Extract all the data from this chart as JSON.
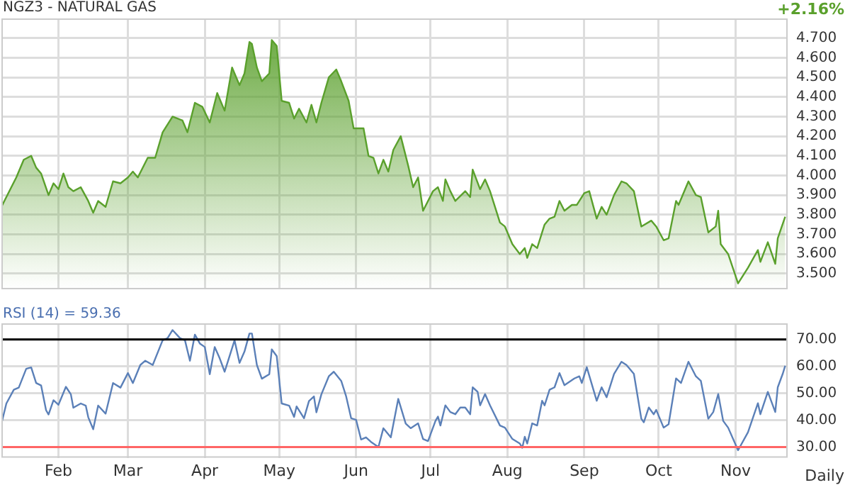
{
  "chart_data": [
    {
      "type": "area",
      "title": "NGZ3 - NATURAL GAS",
      "annotations": [
        "+2.16%"
      ],
      "grid": true,
      "tick_labels": "y",
      "xlim": [
        "--01-09",
        "--11-22"
      ],
      "xticks": [
        {
          "value": "--02-01",
          "label": null
        },
        {
          "value": "--03-01",
          "label": null
        },
        {
          "value": "--04-01",
          "label": null
        },
        {
          "value": "--05-01",
          "label": null
        },
        {
          "value": "--06-01",
          "label": null
        },
        {
          "value": "--07-01",
          "label": null
        },
        {
          "value": "--08-01",
          "label": null
        },
        {
          "value": "--09-01",
          "label": null
        },
        {
          "value": "--10-01",
          "label": null
        },
        {
          "value": "--11-01",
          "label": null
        }
      ],
      "ylim": [
        3.42,
        4.8
      ],
      "yticks": [
        {
          "value": 3.5,
          "label": "3.500"
        },
        {
          "value": 3.6,
          "label": "3.600"
        },
        {
          "value": 3.7,
          "label": "3.700"
        },
        {
          "value": 3.8,
          "label": "3.800"
        },
        {
          "value": 3.9,
          "label": "3.900"
        },
        {
          "value": 4.0,
          "label": "4.000"
        },
        {
          "value": 4.1,
          "label": "4.100"
        },
        {
          "value": 4.2,
          "label": "4.200"
        },
        {
          "value": 4.3,
          "label": "4.300"
        },
        {
          "value": 4.4,
          "label": "4.400"
        },
        {
          "value": 4.5,
          "label": "4.500"
        },
        {
          "value": 4.6,
          "label": "4.600"
        },
        {
          "value": 4.7,
          "label": "4.700"
        }
      ],
      "x": [
        "--01-09",
        "--01-13",
        "--01-15",
        "--01-18",
        "--01-21",
        "--01-23",
        "--01-25",
        "--01-28",
        "--01-30",
        "--02-01",
        "--02-03",
        "--02-05",
        "--02-07",
        "--02-10",
        "--02-13",
        "--02-15",
        "--02-17",
        "--02-20",
        "--02-23",
        "--02-26",
        "--03-01",
        "--03-03",
        "--03-05",
        "--03-09",
        "--03-12",
        "--03-15",
        "--03-19",
        "--03-23",
        "--03-25",
        "--03-28",
        "--03-31",
        "--04-03",
        "--04-06",
        "--04-09",
        "--04-12",
        "--04-15",
        "--04-17",
        "--04-19",
        "--04-20",
        "--04-22",
        "--04-24",
        "--04-27",
        "--04-28",
        "--04-30",
        "--05-02",
        "--05-05",
        "--05-07",
        "--05-09",
        "--05-12",
        "--05-14",
        "--05-16",
        "--05-18",
        "--05-21",
        "--05-24",
        "--05-26",
        "--05-29",
        "--05-31",
        "--06-04",
        "--06-06",
        "--06-08",
        "--06-10",
        "--06-12",
        "--06-14",
        "--06-16",
        "--06-19",
        "--06-22",
        "--06-24",
        "--06-26",
        "--06-28",
        "--07-02",
        "--07-04",
        "--07-06",
        "--07-07",
        "--07-09",
        "--07-11",
        "--07-15",
        "--07-17",
        "--07-18",
        "--07-21",
        "--07-23",
        "--07-25",
        "--07-29",
        "--07-31",
        "--08-03",
        "--08-06",
        "--08-08",
        "--08-09",
        "--08-11",
        "--08-13",
        "--08-16",
        "--08-18",
        "--08-20",
        "--08-22",
        "--08-24",
        "--08-27",
        "--08-29",
        "--09-01",
        "--09-03",
        "--09-06",
        "--09-08",
        "--09-10",
        "--09-13",
        "--09-16",
        "--09-18",
        "--09-21",
        "--09-24",
        "--09-28",
        "--09-30",
        "--10-03",
        "--10-05",
        "--10-08",
        "--10-09",
        "--10-13",
        "--10-16",
        "--10-18",
        "--10-21",
        "--10-24",
        "--10-25",
        "--10-26",
        "--10-29",
        "--11-02",
        "--11-06",
        "--11-10",
        "--11-11",
        "--11-14",
        "--11-17",
        "--11-18",
        "--11-21"
      ],
      "series": [
        {
          "color": "#5aa02c",
          "values": [
            3.84,
            3.94,
            3.99,
            4.08,
            4.1,
            4.04,
            4.01,
            3.9,
            3.96,
            3.93,
            4.01,
            3.94,
            3.92,
            3.94,
            3.87,
            3.81,
            3.87,
            3.84,
            3.97,
            3.96,
            3.99,
            4.02,
            3.99,
            4.09,
            4.09,
            4.22,
            4.3,
            4.28,
            4.22,
            4.37,
            4.35,
            4.27,
            4.42,
            4.33,
            4.55,
            4.46,
            4.52,
            4.68,
            4.67,
            4.55,
            4.48,
            4.52,
            4.69,
            4.66,
            4.38,
            4.37,
            4.29,
            4.34,
            4.27,
            4.36,
            4.27,
            4.37,
            4.5,
            4.54,
            4.48,
            4.38,
            4.24,
            4.24,
            4.1,
            4.09,
            4.01,
            4.08,
            4.02,
            4.13,
            4.2,
            4.05,
            3.94,
            3.99,
            3.82,
            3.92,
            3.94,
            3.87,
            3.98,
            3.92,
            3.87,
            3.92,
            3.89,
            4.03,
            3.93,
            3.98,
            3.92,
            3.76,
            3.74,
            3.65,
            3.6,
            3.63,
            3.58,
            3.65,
            3.63,
            3.75,
            3.78,
            3.79,
            3.87,
            3.82,
            3.85,
            3.85,
            3.91,
            3.92,
            3.78,
            3.84,
            3.8,
            3.9,
            3.97,
            3.96,
            3.92,
            3.74,
            3.77,
            3.74,
            3.67,
            3.68,
            3.87,
            3.85,
            3.97,
            3.9,
            3.89,
            3.71,
            3.74,
            3.82,
            3.65,
            3.6,
            3.45,
            3.53,
            3.62,
            3.56,
            3.66,
            3.55,
            3.68,
            3.79
          ]
        }
      ]
    },
    {
      "type": "line",
      "title": "RSI (14) = 59.36",
      "annotations": [
        "Daily"
      ],
      "grid": true,
      "xlim": [
        "--01-09",
        "--11-22"
      ],
      "xticks": [
        {
          "value": "--02-01",
          "label": "Feb"
        },
        {
          "value": "--03-01",
          "label": "Mar"
        },
        {
          "value": "--04-01",
          "label": "Apr"
        },
        {
          "value": "--05-01",
          "label": "May"
        },
        {
          "value": "--06-01",
          "label": "Jun"
        },
        {
          "value": "--07-01",
          "label": "Jul"
        },
        {
          "value": "--08-01",
          "label": "Aug"
        },
        {
          "value": "--09-01",
          "label": "Sep"
        },
        {
          "value": "--10-01",
          "label": "Oct"
        },
        {
          "value": "--11-01",
          "label": "Nov"
        }
      ],
      "ylim": [
        26,
        76
      ],
      "yticks": [
        {
          "value": 30,
          "label": "30.00"
        },
        {
          "value": 40,
          "label": "40.00"
        },
        {
          "value": 50,
          "label": "50.00"
        },
        {
          "value": 60,
          "label": "60.00"
        },
        {
          "value": 70,
          "label": "70.00"
        }
      ],
      "ref_lines": [
        {
          "axis": "y",
          "value": 70,
          "color": "#000000"
        },
        {
          "axis": "y",
          "value": 30,
          "color": "#ff6666"
        }
      ],
      "x": [
        "--01-09",
        "--01-11",
        "--01-14",
        "--01-16",
        "--01-19",
        "--01-21",
        "--01-23",
        "--01-25",
        "--01-27",
        "--01-28",
        "--01-30",
        "--02-01",
        "--02-04",
        "--02-06",
        "--02-07",
        "--02-10",
        "--02-12",
        "--02-13",
        "--02-15",
        "--02-17",
        "--02-20",
        "--02-23",
        "--02-26",
        "--03-01",
        "--03-03",
        "--03-06",
        "--03-08",
        "--03-11",
        "--03-15",
        "--03-17",
        "--03-19",
        "--03-22",
        "--03-24",
        "--03-26",
        "--03-28",
        "--03-30",
        "--04-01",
        "--04-03",
        "--04-05",
        "--04-07",
        "--04-09",
        "--04-13",
        "--04-15",
        "--04-17",
        "--04-19",
        "--04-20",
        "--04-22",
        "--04-24",
        "--04-27",
        "--04-28",
        "--04-30",
        "--05-02",
        "--05-05",
        "--05-07",
        "--05-08",
        "--05-11",
        "--05-13",
        "--05-15",
        "--05-16",
        "--05-18",
        "--05-21",
        "--05-23",
        "--05-26",
        "--05-28",
        "--05-30",
        "--06-01",
        "--06-03",
        "--06-05",
        "--06-07",
        "--06-10",
        "--06-12",
        "--06-15",
        "--06-18",
        "--06-21",
        "--06-23",
        "--06-26",
        "--06-28",
        "--06-30",
        "--07-03",
        "--07-04",
        "--07-05",
        "--07-07",
        "--07-09",
        "--07-11",
        "--07-13",
        "--07-15",
        "--07-17",
        "--07-18",
        "--07-20",
        "--07-21",
        "--07-23",
        "--07-25",
        "--07-29",
        "--07-31",
        "--08-03",
        "--08-06",
        "--08-07",
        "--08-08",
        "--08-09",
        "--08-11",
        "--08-13",
        "--08-15",
        "--08-16",
        "--08-18",
        "--08-20",
        "--08-22",
        "--08-24",
        "--08-28",
        "--08-30",
        "--08-31",
        "--09-02",
        "--09-06",
        "--09-08",
        "--09-10",
        "--09-13",
        "--09-16",
        "--09-18",
        "--09-21",
        "--09-24",
        "--09-25",
        "--09-27",
        "--09-29",
        "--09-30",
        "--10-03",
        "--10-05",
        "--10-08",
        "--10-10",
        "--10-13",
        "--10-16",
        "--10-18",
        "--10-21",
        "--10-23",
        "--10-25",
        "--10-27",
        "--10-29",
        "--11-02",
        "--11-06",
        "--11-10",
        "--11-11",
        "--11-14",
        "--11-17",
        "--11-18",
        "--11-20",
        "--11-21"
      ],
      "series": [
        {
          "color": "#5b80b8",
          "values": [
            38.7,
            46.2,
            51.3,
            52.1,
            59.1,
            59.6,
            53.8,
            52.9,
            43.7,
            42.1,
            47.4,
            45.7,
            52.4,
            49.6,
            44.6,
            46.2,
            45.4,
            41.1,
            36.6,
            45.4,
            42.4,
            53.8,
            52.1,
            57.5,
            53.8,
            60.5,
            62.1,
            60.5,
            69.7,
            70.5,
            73.5,
            70.5,
            69.7,
            62.1,
            71.8,
            68.5,
            67.2,
            57.1,
            67.2,
            63.0,
            58.0,
            69.7,
            61.3,
            65.5,
            72.2,
            72.2,
            60.5,
            55.4,
            57.1,
            66.3,
            63.8,
            46.2,
            45.4,
            41.2,
            45.1,
            40.7,
            47.1,
            48.8,
            42.9,
            49.6,
            56.3,
            58.0,
            54.6,
            48.8,
            40.7,
            40.1,
            32.8,
            33.6,
            31.9,
            30.0,
            37.0,
            33.6,
            47.9,
            38.7,
            37.0,
            38.8,
            33.0,
            32.2,
            39.7,
            41.3,
            38.0,
            45.5,
            43.0,
            42.2,
            44.7,
            44.7,
            42.2,
            52.2,
            50.5,
            45.5,
            49.7,
            45.5,
            38.0,
            37.2,
            33.0,
            31.3,
            29.7,
            33.8,
            31.3,
            38.8,
            38.0,
            47.2,
            45.5,
            51.3,
            52.2,
            57.5,
            53.0,
            55.5,
            56.3,
            53.8,
            59.7,
            47.2,
            52.2,
            48.5,
            57.2,
            61.7,
            60.5,
            57.2,
            40.5,
            39.2,
            44.7,
            42.2,
            43.8,
            37.2,
            38.5,
            55.5,
            53.8,
            61.7,
            56.3,
            54.6,
            40.5,
            43.0,
            49.7,
            39.7,
            37.2,
            28.8,
            35.5,
            46.3,
            42.2,
            50.5,
            43.0,
            52.2,
            57.2,
            60.2
          ]
        }
      ]
    }
  ]
}
